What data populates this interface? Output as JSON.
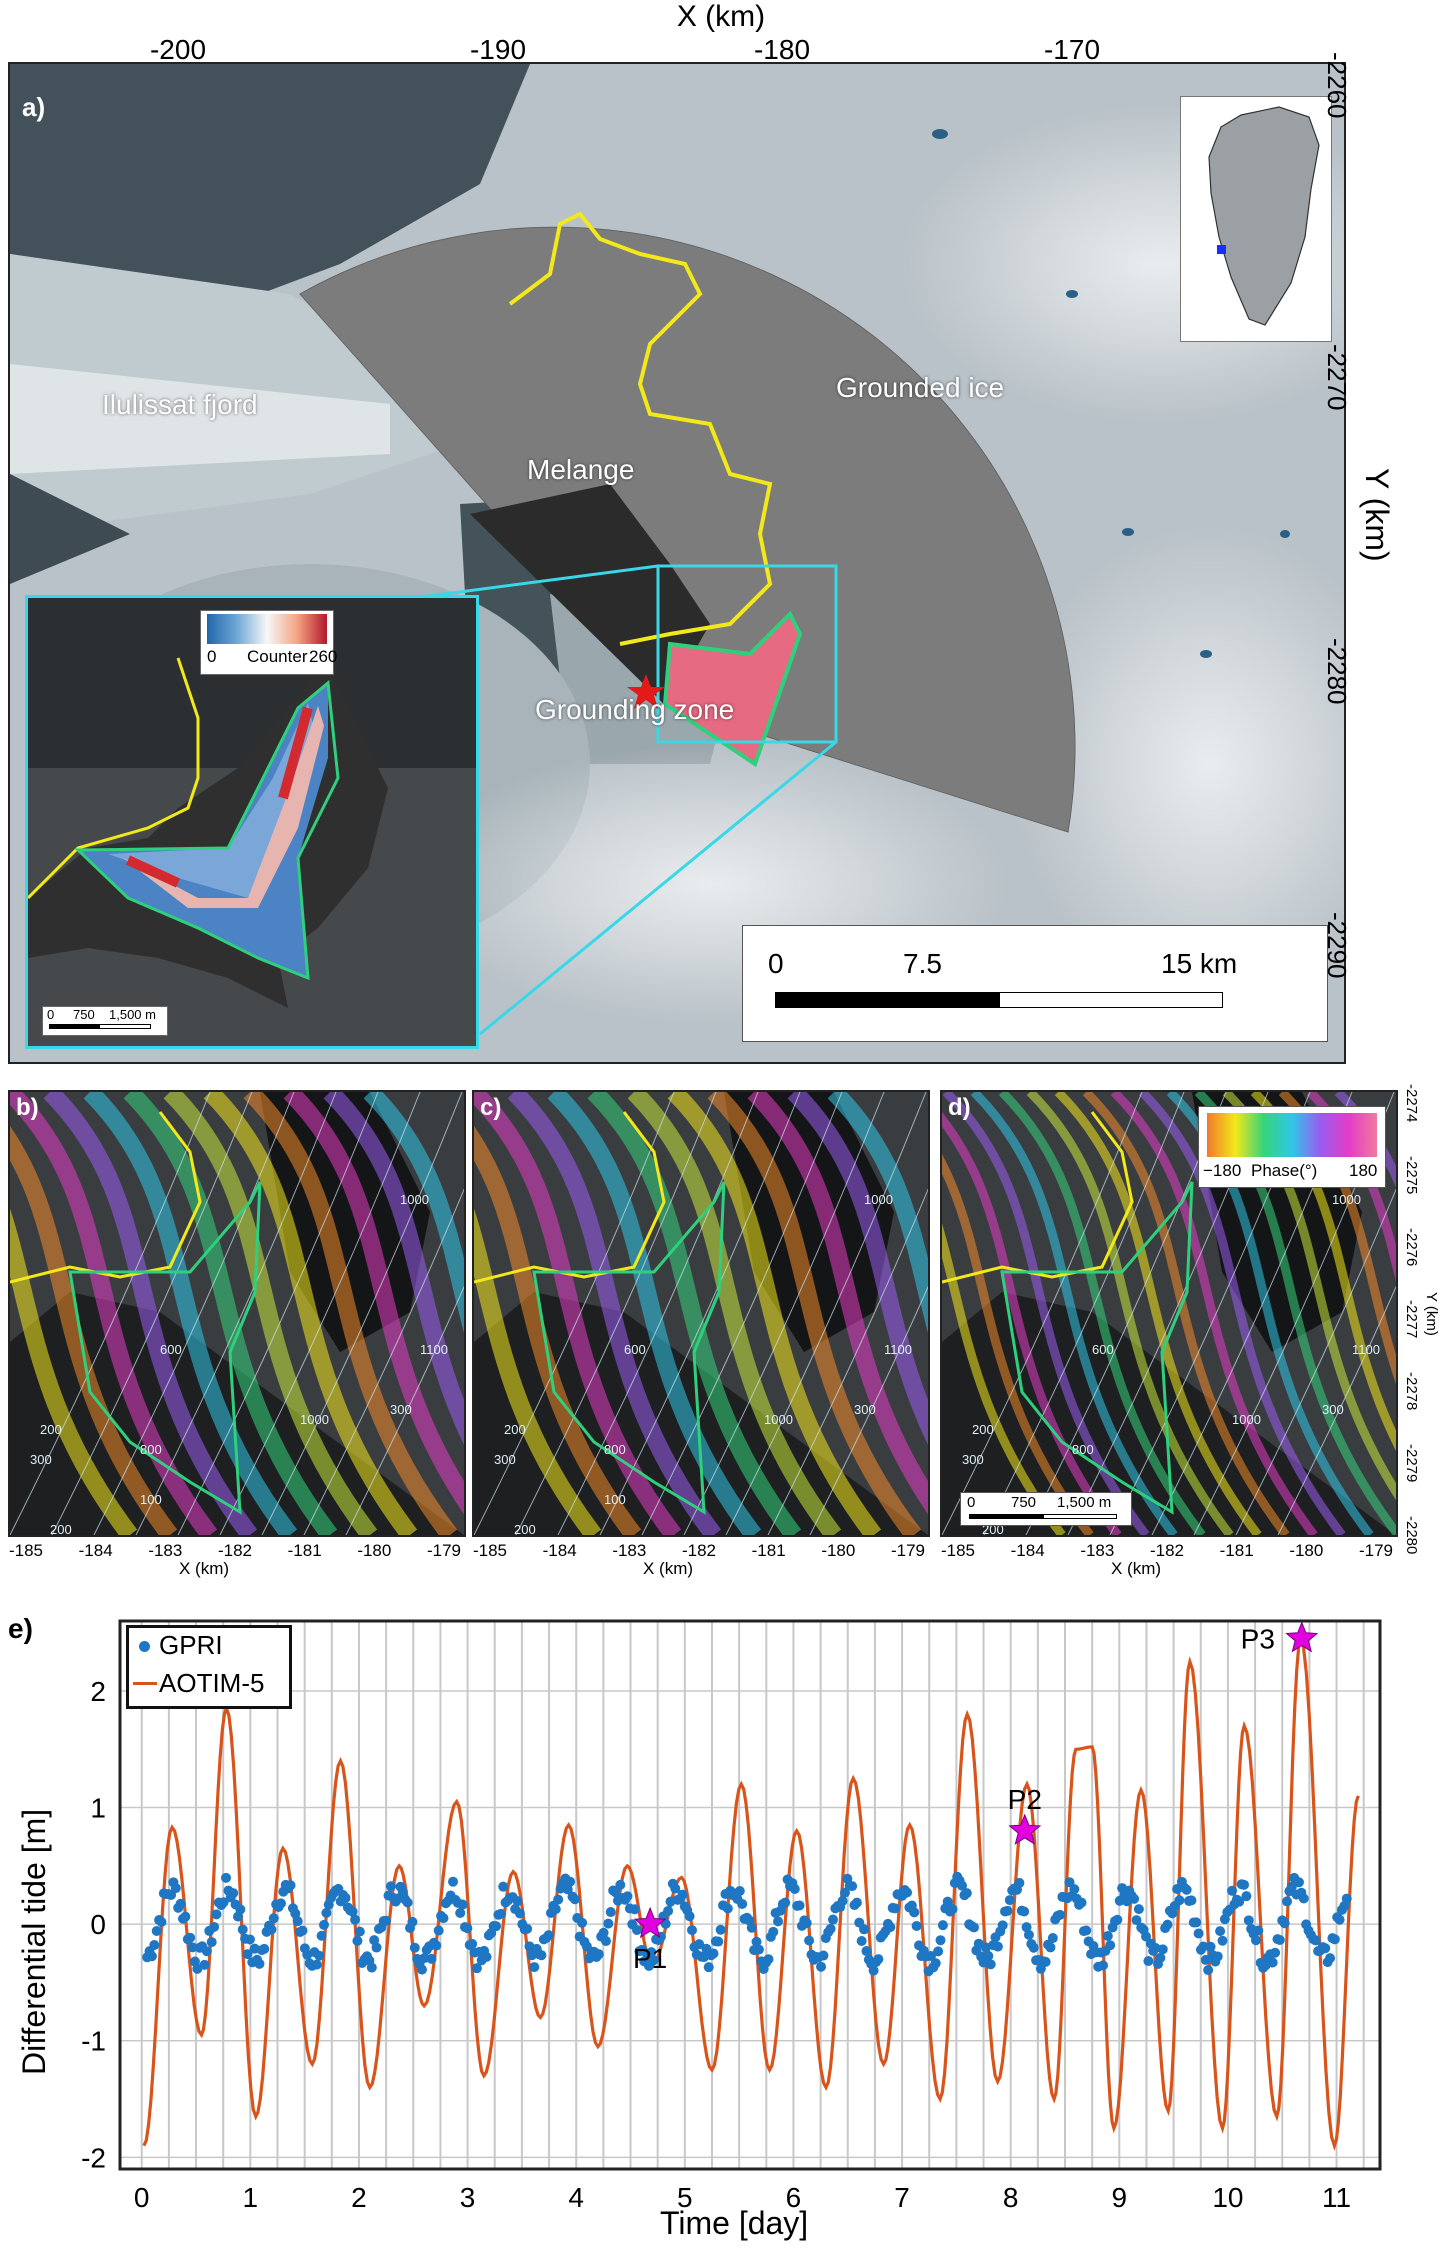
{
  "panel_a": {
    "label": "a)",
    "x_axis_title": "X (km)",
    "x_ticks": [
      "-200",
      "-190",
      "-180",
      "-170"
    ],
    "y_axis_title": "Y (km)",
    "y_ticks": [
      "-2260",
      "-2270",
      "-2280",
      "-2290"
    ],
    "annotations": {
      "fjord": "Ilulissat fjord",
      "grounded": "Grounded ice",
      "melange": "Melange",
      "grounding": "Grounding zone"
    },
    "scalebar": [
      "0",
      "7.5",
      "15 km"
    ],
    "inset": {
      "colorbar_min": "0",
      "colorbar_label": "Counter",
      "colorbar_max": "260",
      "scalebar": [
        "0",
        "750",
        "1,500 m"
      ]
    }
  },
  "panels_bcd": {
    "labels": [
      "b)",
      "c)",
      "d)"
    ],
    "x_ticks": [
      "-185",
      "-184",
      "-183",
      "-182",
      "-181",
      "-180",
      "-179"
    ],
    "x_title": "X (km)",
    "y_ticks": [
      "-2274",
      "-2275",
      "-2276",
      "-2277",
      "-2278",
      "-2279",
      "-2280"
    ],
    "y_title": "Y (km)",
    "contours": [
      "100",
      "200",
      "300",
      "600",
      "800",
      "1000",
      "1100",
      "1000",
      "300",
      "200"
    ],
    "phase_colorbar": {
      "min": "−180",
      "label": "Phase(°)",
      "max": "180"
    },
    "scalebar": [
      "0",
      "750",
      "1,500 m"
    ]
  },
  "panel_e": {
    "label": "e)",
    "legend": [
      "GPRI",
      "AOTIM-5"
    ],
    "points": [
      "P1",
      "P2",
      "P3"
    ],
    "colors": {
      "gpri": "#1f77c4",
      "aotim": "#d9541a",
      "star": "#e000e0"
    }
  },
  "chart_data": {
    "type": "line",
    "title": "",
    "xlabel": "Time [day]",
    "ylabel": "Differential tide [m]",
    "xlim": [
      -0.2,
      11.4
    ],
    "ylim": [
      -2.1,
      2.6
    ],
    "xticks": [
      0,
      1,
      2,
      3,
      4,
      5,
      6,
      7,
      8,
      9,
      10,
      11
    ],
    "yticks": [
      -2,
      -1,
      0,
      1,
      2
    ],
    "grid": true,
    "legend_position": "top-left",
    "series": [
      {
        "name": "GPRI",
        "style": "scatter",
        "color": "#1f77c4",
        "amplitude": 0.3
      },
      {
        "name": "AOTIM-5",
        "style": "line",
        "color": "#d9541a",
        "peaks": [
          [
            0.02,
            -1.9
          ],
          [
            0.28,
            0.83
          ],
          [
            0.55,
            -0.95
          ],
          [
            0.78,
            1.85
          ],
          [
            1.05,
            -1.65
          ],
          [
            1.3,
            0.65
          ],
          [
            1.57,
            -1.2
          ],
          [
            1.83,
            1.4
          ],
          [
            2.1,
            -1.4
          ],
          [
            2.37,
            0.5
          ],
          [
            2.6,
            -0.7
          ],
          [
            2.9,
            1.05
          ],
          [
            3.15,
            -1.3
          ],
          [
            3.42,
            0.45
          ],
          [
            3.67,
            -0.8
          ],
          [
            3.93,
            0.85
          ],
          [
            4.2,
            -1.05
          ],
          [
            4.47,
            0.5
          ],
          [
            4.7,
            -0.35
          ],
          [
            4.97,
            0.4
          ],
          [
            5.25,
            -1.25
          ],
          [
            5.52,
            1.2
          ],
          [
            5.78,
            -1.25
          ],
          [
            6.03,
            0.8
          ],
          [
            6.3,
            -1.4
          ],
          [
            6.55,
            1.25
          ],
          [
            6.83,
            -1.2
          ],
          [
            7.07,
            0.85
          ],
          [
            7.35,
            -1.5
          ],
          [
            7.6,
            1.8
          ],
          [
            7.88,
            -1.35
          ],
          [
            8.15,
            1.2
          ],
          [
            8.4,
            -1.5
          ],
          [
            8.6,
            1.5
          ],
          [
            8.75,
            1.52
          ],
          [
            8.95,
            -1.75
          ],
          [
            9.2,
            1.15
          ],
          [
            9.45,
            -1.6
          ],
          [
            9.65,
            2.25
          ],
          [
            9.95,
            -1.75
          ],
          [
            10.15,
            1.7
          ],
          [
            10.45,
            -1.65
          ],
          [
            10.67,
            2.45
          ],
          [
            10.98,
            -1.9
          ],
          [
            11.2,
            1.1
          ]
        ]
      },
      {
        "name": "",
        "style": "markers",
        "color": "#e000e0",
        "points": [
          {
            "x": 4.68,
            "y": 0.0,
            "label": "P1"
          },
          {
            "x": 8.13,
            "y": 0.8,
            "label": "P2"
          },
          {
            "x": 10.68,
            "y": 2.45,
            "label": "P3"
          }
        ]
      }
    ]
  }
}
